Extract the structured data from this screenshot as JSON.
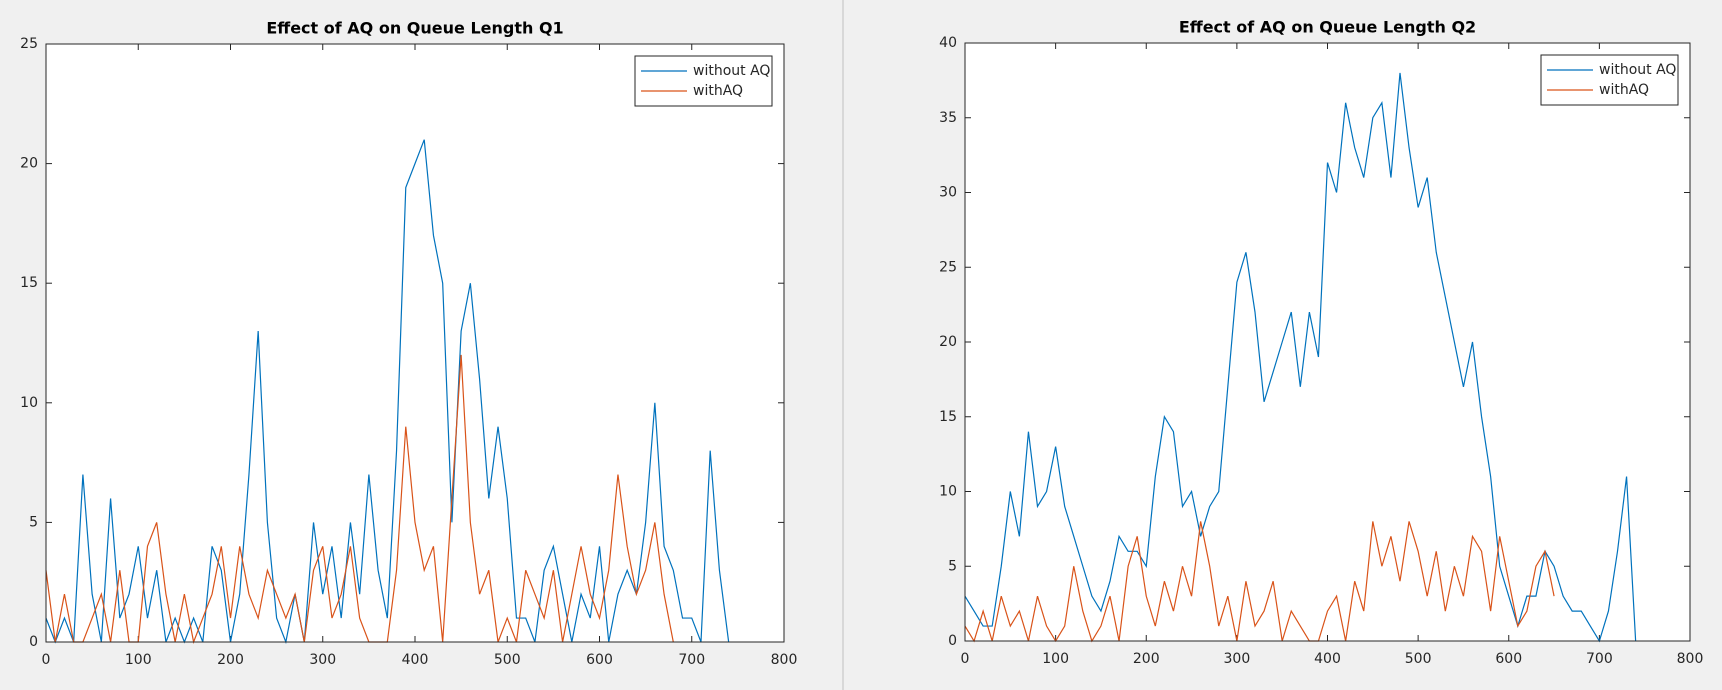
{
  "chart_data": [
    {
      "type": "line",
      "title": "Effect of AQ on Queue Length Q1",
      "xlim": [
        0,
        800
      ],
      "xticks": [
        0,
        100,
        200,
        300,
        400,
        500,
        600,
        700,
        800
      ],
      "ylim": [
        0,
        25
      ],
      "yticks": [
        0,
        5,
        10,
        15,
        20,
        25
      ],
      "legend": "upper right",
      "grid": false,
      "series": [
        {
          "name": "without AQ",
          "color": "#0072BD",
          "x": [
            0,
            10,
            20,
            30,
            40,
            50,
            60,
            70,
            80,
            90,
            100,
            110,
            120,
            130,
            140,
            150,
            160,
            170,
            180,
            190,
            200,
            210,
            220,
            230,
            240,
            250,
            260,
            270,
            280,
            290,
            300,
            310,
            320,
            330,
            340,
            350,
            360,
            370,
            380,
            390,
            400,
            410,
            420,
            430,
            440,
            450,
            460,
            470,
            480,
            490,
            500,
            510,
            520,
            530,
            540,
            550,
            560,
            570,
            580,
            590,
            600,
            610,
            620,
            630,
            640,
            650,
            660,
            670,
            680,
            690,
            700,
            710,
            720,
            730,
            740
          ],
          "values": [
            1,
            0,
            1,
            0,
            7,
            2,
            0,
            6,
            1,
            2,
            4,
            1,
            3,
            0,
            1,
            0,
            1,
            0,
            4,
            3,
            0,
            2,
            7,
            13,
            5,
            1,
            0,
            2,
            0,
            5,
            2,
            4,
            1,
            5,
            2,
            7,
            3,
            1,
            8,
            19,
            20,
            21,
            17,
            15,
            5,
            13,
            15,
            11,
            6,
            9,
            6,
            1,
            1,
            0,
            3,
            4,
            2,
            0,
            2,
            1,
            4,
            0,
            2,
            3,
            2,
            5,
            10,
            4,
            3,
            1,
            1,
            0,
            8,
            3,
            0
          ]
        },
        {
          "name": "withAQ",
          "color": "#D95319",
          "x": [
            0,
            10,
            20,
            30,
            40,
            50,
            60,
            70,
            80,
            90,
            100,
            110,
            120,
            130,
            140,
            150,
            160,
            170,
            180,
            190,
            200,
            210,
            220,
            230,
            240,
            250,
            260,
            270,
            280,
            290,
            300,
            310,
            320,
            330,
            340,
            350,
            360,
            370,
            380,
            390,
            400,
            410,
            420,
            430,
            440,
            450,
            460,
            470,
            480,
            490,
            500,
            510,
            520,
            530,
            540,
            550,
            560,
            570,
            580,
            590,
            600,
            610,
            620,
            630,
            640,
            650,
            660,
            670,
            680
          ],
          "values": [
            3,
            0,
            2,
            0,
            0,
            1,
            2,
            0,
            3,
            0,
            0,
            4,
            5,
            2,
            0,
            2,
            0,
            1,
            2,
            4,
            1,
            4,
            2,
            1,
            3,
            2,
            1,
            2,
            0,
            3,
            4,
            1,
            2,
            4,
            1,
            0,
            0,
            0,
            3,
            9,
            5,
            3,
            4,
            0,
            6,
            12,
            5,
            2,
            3,
            0,
            1,
            0,
            3,
            2,
            1,
            3,
            0,
            2,
            4,
            2,
            1,
            3,
            7,
            4,
            2,
            3,
            5,
            2,
            0
          ]
        }
      ]
    },
    {
      "type": "line",
      "title": "Effect of AQ on Queue Length Q2",
      "xlim": [
        0,
        800
      ],
      "xticks": [
        0,
        100,
        200,
        300,
        400,
        500,
        600,
        700,
        800
      ],
      "ylim": [
        0,
        40
      ],
      "yticks": [
        0,
        5,
        10,
        15,
        20,
        25,
        30,
        35,
        40
      ],
      "legend": "upper right",
      "grid": false,
      "series": [
        {
          "name": "without AQ",
          "color": "#0072BD",
          "x": [
            0,
            10,
            20,
            30,
            40,
            50,
            60,
            70,
            80,
            90,
            100,
            110,
            120,
            130,
            140,
            150,
            160,
            170,
            180,
            190,
            200,
            210,
            220,
            230,
            240,
            250,
            260,
            270,
            280,
            290,
            300,
            310,
            320,
            330,
            340,
            350,
            360,
            370,
            380,
            390,
            400,
            410,
            420,
            430,
            440,
            450,
            460,
            470,
            480,
            490,
            500,
            510,
            520,
            530,
            540,
            550,
            560,
            570,
            580,
            590,
            600,
            610,
            620,
            630,
            640,
            650,
            660,
            670,
            680,
            690,
            700,
            710,
            720,
            730,
            740
          ],
          "values": [
            3,
            2,
            1,
            1,
            5,
            10,
            7,
            14,
            9,
            10,
            13,
            9,
            7,
            5,
            3,
            2,
            4,
            7,
            6,
            6,
            5,
            11,
            15,
            14,
            9,
            10,
            7,
            9,
            10,
            17,
            24,
            26,
            22,
            16,
            18,
            20,
            22,
            17,
            22,
            19,
            32,
            30,
            36,
            33,
            31,
            35,
            36,
            31,
            38,
            33,
            29,
            31,
            26,
            23,
            20,
            17,
            20,
            15,
            11,
            5,
            3,
            1,
            3,
            3,
            6,
            5,
            3,
            2,
            2,
            1,
            0,
            2,
            6,
            11,
            0
          ]
        },
        {
          "name": "withAQ",
          "color": "#D95319",
          "x": [
            0,
            10,
            20,
            30,
            40,
            50,
            60,
            70,
            80,
            90,
            100,
            110,
            120,
            130,
            140,
            150,
            160,
            170,
            180,
            190,
            200,
            210,
            220,
            230,
            240,
            250,
            260,
            270,
            280,
            290,
            300,
            310,
            320,
            330,
            340,
            350,
            360,
            370,
            380,
            390,
            400,
            410,
            420,
            430,
            440,
            450,
            460,
            470,
            480,
            490,
            500,
            510,
            520,
            530,
            540,
            550,
            560,
            570,
            580,
            590,
            600,
            610,
            620,
            630,
            640,
            650
          ],
          "values": [
            1,
            0,
            2,
            0,
            3,
            1,
            2,
            0,
            3,
            1,
            0,
            1,
            5,
            2,
            0,
            1,
            3,
            0,
            5,
            7,
            3,
            1,
            4,
            2,
            5,
            3,
            8,
            5,
            1,
            3,
            0,
            4,
            1,
            2,
            4,
            0,
            2,
            1,
            0,
            0,
            2,
            3,
            0,
            4,
            2,
            8,
            5,
            7,
            4,
            8,
            6,
            3,
            6,
            2,
            5,
            3,
            7,
            6,
            2,
            7,
            4,
            1,
            2,
            5,
            6,
            3
          ]
        }
      ]
    }
  ]
}
